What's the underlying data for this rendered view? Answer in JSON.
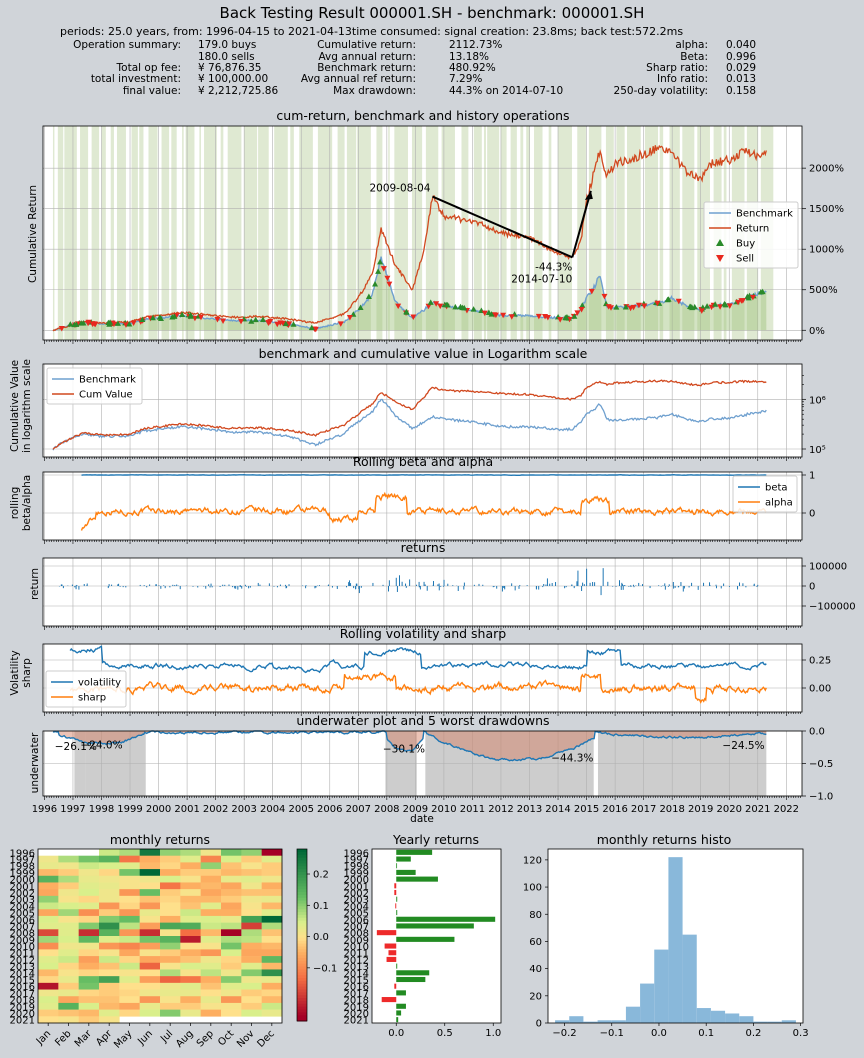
{
  "header": {
    "title": "Back Testing Result 000001.SH - benchmark: 000001.SH",
    "subtitle": "periods: 25.0 years, from: 1996-04-15 to 2021-04-13time consumed:   signal creation: 23.8ms;  back test:572.2ms"
  },
  "summary": {
    "left": [
      {
        "label": "Operation summary:",
        "value": "179.0     buys"
      },
      {
        "label": "",
        "value": "180.0     sells"
      },
      {
        "label": "Total op fee:",
        "value": "¥    76,876.35"
      },
      {
        "label": "total investment:",
        "value": "¥   100,000.00"
      },
      {
        "label": "final value:",
        "value": "¥ 2,212,725.86"
      }
    ],
    "middle": [
      {
        "label": "Cumulative return:",
        "value": "2112.73%"
      },
      {
        "label": "Avg annual return:",
        "value": " 13.18%"
      },
      {
        "label": "Benchmark return:",
        "value": "480.92%"
      },
      {
        "label": "Avg annual ref return:",
        "value": "7.29%"
      },
      {
        "label": "Max drawdown:",
        "value": "44.3% on 2014-07-10"
      }
    ],
    "right": [
      {
        "label": "alpha:",
        "value": "0.040"
      },
      {
        "label": "Beta:",
        "value": "0.996"
      },
      {
        "label": "Sharp ratio:",
        "value": "0.029"
      },
      {
        "label": "Info ratio:",
        "value": "0.013"
      },
      {
        "label": "250-day volatility:",
        "value": "0.158"
      }
    ]
  },
  "chart_data": [
    {
      "type": "line",
      "title": "cum-return, benchmark and history operations",
      "ylabel": "Cumulative Return",
      "y_ticks": [
        "0%",
        "500%",
        "1000%",
        "1500%",
        "2000%"
      ],
      "ylim": [
        -1.2,
        25.2
      ],
      "x": [
        1996.3,
        1997.0,
        1997.4,
        1998.0,
        1999.0,
        1999.5,
        2000.0,
        2000.8,
        2001.5,
        2002.5,
        2003.5,
        2004.5,
        2005.5,
        2006.5,
        2007.0,
        2007.5,
        2007.8,
        2008.3,
        2008.9,
        2009.3,
        2009.6,
        2010.0,
        2011.0,
        2012.0,
        2013.0,
        2014.0,
        2014.5,
        2014.8,
        2015.0,
        2015.3,
        2015.45,
        2015.7,
        2016.0,
        2016.5,
        2017.5,
        2018.0,
        2018.5,
        2019.0,
        2019.3,
        2020.0,
        2020.5,
        2021.0,
        2021.3
      ],
      "series": [
        {
          "name": "Benchmark",
          "color": "#6fa0cf",
          "values": [
            0.0,
            0.7,
            1.0,
            0.8,
            0.8,
            1.3,
            1.5,
            1.8,
            1.6,
            1.2,
            1.2,
            0.8,
            0.2,
            1.0,
            2.5,
            4.5,
            8.8,
            3.5,
            1.5,
            2.5,
            3.5,
            3.0,
            2.5,
            1.8,
            1.8,
            1.5,
            1.5,
            2.5,
            4.0,
            5.5,
            7.0,
            3.0,
            2.8,
            2.9,
            3.3,
            4.0,
            3.0,
            2.5,
            3.0,
            3.2,
            3.8,
            4.5,
            4.8
          ]
        },
        {
          "name": "Return",
          "color": "#d1491f",
          "values": [
            0.0,
            0.7,
            1.1,
            0.9,
            1.0,
            1.6,
            1.8,
            2.2,
            2.0,
            1.6,
            1.7,
            1.4,
            0.9,
            2.0,
            4.0,
            7.0,
            12.5,
            8.0,
            5.0,
            10.0,
            16.5,
            14.0,
            13.5,
            12.0,
            11.5,
            9.5,
            9.0,
            11.0,
            16.0,
            20.0,
            22.0,
            19.0,
            20.5,
            21.0,
            22.5,
            22.0,
            19.5,
            18.5,
            20.5,
            21.0,
            22.0,
            21.5,
            21.8
          ]
        }
      ],
      "shade_color": "#c5d7ad",
      "buy_color": "#2a8a2a",
      "sell_color": "#e8281e",
      "legend": [
        "Benchmark",
        "Return",
        "Buy",
        "Sell"
      ],
      "legend_loc": "center-right",
      "annotations": [
        {
          "text": "2009-08-04",
          "x": 2009.6,
          "y": 16.5
        },
        {
          "text": "-44.3%",
          "x": 2014.5,
          "y": 9.0
        },
        {
          "text": "2014-07-10",
          "x": 2014.5,
          "y": 7.5
        }
      ]
    },
    {
      "type": "line",
      "title": "benchmark and cumulative value in Logarithm scale",
      "ylabel": "Cumulative Value\nin logarithm scale",
      "y_scale": "log",
      "y_ticks": [
        "10^6",
        "10^5"
      ],
      "series": [
        {
          "name": "Benchmark",
          "color": "#6fa0cf"
        },
        {
          "name": "Cum Value",
          "color": "#d1491f"
        }
      ],
      "legend_loc": "upper-left"
    },
    {
      "type": "line",
      "title": "Rolling beta and alpha",
      "ylabel": "rolling\nbeta/alpha",
      "y_ticks": [
        "1",
        "0"
      ],
      "series": [
        {
          "name": "beta",
          "color": "#1f77b4"
        },
        {
          "name": "alpha",
          "color": "#ff7f0e"
        }
      ],
      "legend_loc": "upper-right"
    },
    {
      "type": "bar",
      "title": "returns",
      "ylabel": "return",
      "y_ticks": [
        "100000",
        "0",
        "−100000"
      ]
    },
    {
      "type": "line",
      "title": "Rolling volatility and sharp",
      "ylabel": "Volatility\nsharp",
      "y_ticks": [
        "0.25",
        "0.00"
      ],
      "series": [
        {
          "name": "volatility",
          "color": "#1f77b4"
        },
        {
          "name": "sharp",
          "color": "#ff7f0e"
        }
      ],
      "legend_loc": "lower-left"
    },
    {
      "type": "area",
      "title": "underwater plot and 5 worst drawdowns",
      "ylabel": "underwater",
      "xlabel": "date",
      "y_ticks": [
        "0.0",
        "−0.5",
        "−1.0"
      ],
      "x_ticks": [
        "1996",
        "1997",
        "1998",
        "1999",
        "2000",
        "2001",
        "2002",
        "2003",
        "2004",
        "2005",
        "2006",
        "2007",
        "2008",
        "2009",
        "2010",
        "2011",
        "2012",
        "2013",
        "2014",
        "2015",
        "2016",
        "2017",
        "2018",
        "2019",
        "2020",
        "2021",
        "2022"
      ],
      "drawdown_periods": [
        [
          1997.05,
          1997.45
        ],
        [
          1997.45,
          1999.55
        ],
        [
          2007.95,
          2009.05
        ],
        [
          2009.35,
          2015.25
        ],
        [
          2015.4,
          2021.3
        ]
      ],
      "labels": [
        {
          "text": "−26.1%",
          "x": 1997.1,
          "y": -0.26
        },
        {
          "text": "−24.0%",
          "x": 1998.0,
          "y": -0.24
        },
        {
          "text": "−30.1%",
          "x": 2008.6,
          "y": -0.3
        },
        {
          "text": "−44.3%",
          "x": 2014.5,
          "y": -0.44
        },
        {
          "text": "−24.5%",
          "x": 2020.5,
          "y": -0.245
        }
      ]
    },
    {
      "type": "heatmap",
      "title": "monthly returns",
      "rows": [
        "1996",
        "1997",
        "1998",
        "1999",
        "2000",
        "2001",
        "2002",
        "2003",
        "2004",
        "2005",
        "2006",
        "2007",
        "2008",
        "2009",
        "2010",
        "2011",
        "2012",
        "2013",
        "2014",
        "2015",
        "2016",
        "2017",
        "2018",
        "2019",
        "2020",
        "2021"
      ],
      "cols": [
        "Jan",
        "Feb",
        "Mar",
        "Apr",
        "May",
        "Jun",
        "Jul",
        "Aug",
        "Sep",
        "Oct",
        "Nov",
        "Dec"
      ],
      "colorbar_ticks": [
        "0.2",
        "0.1",
        "0.0",
        "−0.1"
      ],
      "values": [
        [
          0,
          0,
          0,
          0.06,
          0.08,
          0.25,
          0.1,
          0.08,
          0.02,
          0.12,
          0.1,
          -0.25
        ],
        [
          0.02,
          0.08,
          0.12,
          0.15,
          -0.12,
          -0.05,
          -0.02,
          0.04,
          -0.1,
          0.05,
          -0.02,
          0.04
        ],
        [
          0.03,
          0.02,
          0.06,
          0.05,
          0.04,
          -0.04,
          -0.01,
          -0.05,
          0.1,
          -0.03,
          0.01,
          -0.02
        ],
        [
          -0.04,
          -0.02,
          0.02,
          -0.01,
          0.12,
          0.3,
          -0.05,
          -0.02,
          -0.02,
          -0.04,
          -0.03,
          -0.02
        ],
        [
          0.15,
          0.08,
          0.03,
          0.02,
          0.01,
          0.02,
          0.05,
          0.01,
          -0.05,
          0.03,
          0.04,
          0.02
        ],
        [
          -0.05,
          -0.02,
          0.04,
          0.03,
          0.01,
          0.0,
          -0.12,
          -0.05,
          -0.04,
          -0.06,
          0.02,
          -0.05
        ],
        [
          -0.06,
          0.02,
          0.05,
          0.02,
          -0.08,
          0.13,
          -0.02,
          0.01,
          -0.06,
          -0.04,
          -0.03,
          -0.03
        ],
        [
          0.1,
          0.01,
          -0.01,
          0.02,
          0.0,
          -0.03,
          -0.01,
          -0.04,
          -0.04,
          -0.02,
          0.02,
          0.03
        ],
        [
          0.06,
          0.05,
          0.04,
          -0.08,
          -0.01,
          -0.08,
          0.0,
          -0.03,
          0.04,
          -0.06,
          0.01,
          -0.04
        ],
        [
          -0.06,
          0.09,
          -0.09,
          -0.02,
          -0.08,
          0.03,
          0.0,
          0.06,
          -0.05,
          -0.05,
          0.0,
          0.04
        ],
        [
          0.05,
          0.01,
          -0.01,
          0.11,
          0.13,
          0.01,
          -0.05,
          0.04,
          0.05,
          0.03,
          0.18,
          0.28
        ],
        [
          0.04,
          0.04,
          0.11,
          0.21,
          0.07,
          -0.07,
          0.17,
          0.16,
          0.06,
          0.07,
          -0.18,
          0.08
        ],
        [
          -0.17,
          0.04,
          -0.2,
          0.15,
          -0.08,
          -0.2,
          0.01,
          -0.13,
          -0.04,
          -0.25,
          0.08,
          -0.03
        ],
        [
          0.09,
          0.05,
          0.14,
          0.04,
          0.06,
          0.12,
          0.15,
          -0.22,
          0.04,
          0.08,
          0.07,
          0.0
        ],
        [
          -0.09,
          0.02,
          0.02,
          -0.08,
          -0.1,
          -0.07,
          0.1,
          0.0,
          0.01,
          0.12,
          -0.05,
          -0.04
        ],
        [
          0.0,
          0.04,
          -0.01,
          0.01,
          -0.06,
          0.01,
          -0.02,
          -0.05,
          -0.08,
          0.05,
          -0.06,
          -0.06
        ],
        [
          0.04,
          0.06,
          -0.07,
          0.06,
          -0.01,
          -0.06,
          -0.05,
          -0.03,
          0.02,
          -0.01,
          -0.05,
          0.14
        ],
        [
          0.05,
          -0.01,
          -0.05,
          -0.03,
          0.06,
          -0.14,
          0.01,
          0.05,
          0.04,
          -0.02,
          0.04,
          -0.04
        ],
        [
          -0.04,
          0.01,
          -0.01,
          0.0,
          0.01,
          0.0,
          0.08,
          0.01,
          0.07,
          0.02,
          0.11,
          0.21
        ],
        [
          -0.01,
          0.03,
          0.13,
          0.18,
          0.04,
          -0.07,
          -0.14,
          -0.12,
          -0.05,
          0.11,
          0.02,
          0.03
        ],
        [
          -0.23,
          -0.02,
          0.12,
          -0.02,
          0.0,
          0.0,
          0.02,
          0.04,
          -0.03,
          0.04,
          0.05,
          -0.05
        ],
        [
          0.02,
          0.03,
          -0.01,
          -0.02,
          -0.01,
          0.02,
          0.03,
          0.03,
          0.0,
          0.02,
          -0.02,
          -0.01
        ],
        [
          0.05,
          -0.06,
          -0.03,
          -0.03,
          0.0,
          -0.08,
          0.01,
          -0.05,
          0.03,
          -0.08,
          0.0,
          -0.04
        ],
        [
          0.04,
          0.15,
          0.05,
          -0.04,
          -0.06,
          0.03,
          -0.02,
          -0.02,
          0.01,
          0.01,
          -0.02,
          0.06
        ],
        [
          -0.02,
          -0.03,
          -0.04,
          0.04,
          -0.01,
          0.05,
          0.11,
          0.03,
          -0.05,
          0.0,
          0.05,
          0.03
        ],
        [
          0.0,
          0.01,
          -0.02,
          0.01,
          0,
          0,
          0,
          0,
          0,
          0,
          0,
          0
        ]
      ]
    },
    {
      "type": "bar",
      "title": "Yearly returns",
      "orientation": "horizontal",
      "categories": [
        "1996",
        "1997",
        "1998",
        "1999",
        "2000",
        "2001",
        "2002",
        "2003",
        "2004",
        "2005",
        "2006",
        "2007",
        "2008",
        "2009",
        "2010",
        "2011",
        "2012",
        "2013",
        "2014",
        "2015",
        "2016",
        "2017",
        "2018",
        "2019",
        "2020",
        "2021"
      ],
      "values": [
        0.37,
        0.15,
        0.0,
        0.2,
        0.43,
        -0.02,
        -0.02,
        0.01,
        -0.01,
        0.01,
        1.02,
        0.8,
        -0.2,
        0.6,
        -0.12,
        -0.08,
        -0.1,
        0.01,
        0.34,
        0.3,
        -0.02,
        0.1,
        -0.15,
        0.1,
        0.05,
        0.02
      ],
      "positive_color": "#228b22",
      "negative_color": "#ee2a2a",
      "xlim": [
        -0.25,
        1.08
      ],
      "x_ticks": [
        "0.0",
        "0.5",
        "1.0"
      ]
    },
    {
      "type": "bar",
      "title": "monthly returns histo",
      "color": "#89b8da",
      "bin_edges": [
        -0.22,
        -0.19,
        -0.16,
        -0.13,
        -0.1,
        -0.07,
        -0.04,
        -0.01,
        0.02,
        0.05,
        0.08,
        0.11,
        0.14,
        0.17,
        0.2,
        0.23,
        0.26,
        0.29
      ],
      "counts": [
        2,
        5,
        1,
        2,
        2,
        12,
        29,
        54,
        122,
        65,
        11,
        9,
        7,
        5,
        1,
        1,
        2
      ],
      "ylim": [
        0,
        128
      ],
      "x_ticks": [
        "−0.2",
        "−0.1",
        "0.0",
        "0.1",
        "0.2",
        "0.3"
      ],
      "y_ticks": [
        "0",
        "20",
        "40",
        "60",
        "80",
        "100",
        "120"
      ]
    }
  ]
}
